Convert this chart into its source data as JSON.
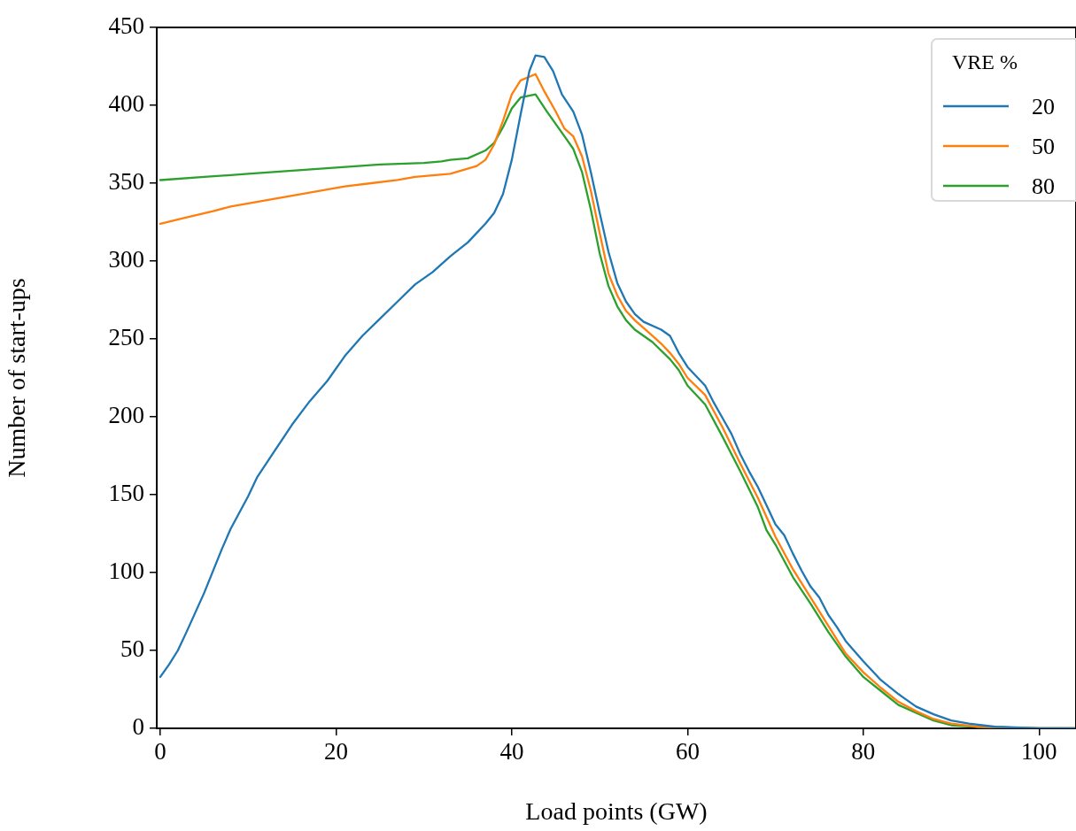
{
  "chart_data": {
    "type": "line",
    "xlabel": "Load points (GW)",
    "ylabel": "Number of start-ups",
    "legend_title": "VRE %",
    "legend": "top right",
    "grid": false,
    "marker": "none",
    "line_style": "solid",
    "xlim": [
      -0.4,
      104.2
    ],
    "xticks": [
      0,
      20,
      40,
      60,
      80,
      100
    ],
    "ylim": [
      0,
      450
    ],
    "yticks": [
      0,
      50,
      100,
      150,
      200,
      250,
      300,
      350,
      400,
      450
    ],
    "series": [
      {
        "name": "20",
        "color": "#1f77b4",
        "x": [
          0,
          1,
          2,
          3,
          5,
          7,
          8,
          10,
          11,
          13,
          15,
          17,
          19,
          21,
          23,
          25,
          27,
          29,
          31,
          33,
          35,
          37,
          38,
          39,
          40,
          41,
          42,
          42.7,
          43.7,
          44.7,
          45.7,
          47,
          48,
          49,
          50,
          51,
          52,
          53,
          54,
          55,
          57,
          58,
          59,
          60,
          61,
          62,
          63,
          64,
          65,
          66,
          67,
          68,
          69,
          70,
          71,
          72,
          73,
          74,
          75,
          76,
          77,
          78,
          80,
          82,
          84,
          86,
          88,
          90,
          92,
          95,
          100,
          104.2
        ],
        "values": [
          33,
          41,
          50,
          62,
          87,
          115,
          128,
          149,
          161,
          178,
          195,
          210,
          223,
          239,
          252,
          263,
          274,
          285,
          293,
          303,
          312,
          324,
          331,
          343,
          365,
          394,
          422,
          432,
          431,
          422,
          407,
          396,
          381,
          357,
          331,
          306,
          286,
          274,
          266,
          261,
          256,
          252,
          241,
          232,
          226,
          220,
          209,
          199,
          189,
          176,
          165,
          155,
          143,
          131,
          124,
          112,
          101,
          91,
          84,
          73,
          65,
          56,
          43,
          31,
          22,
          14,
          9,
          5,
          3,
          1,
          0,
          0
        ]
      },
      {
        "name": "50",
        "color": "#ff7f0e",
        "x": [
          0,
          3,
          6,
          8,
          10,
          13,
          15,
          17,
          19,
          21,
          24,
          27,
          29,
          33,
          36,
          37,
          38,
          39,
          40,
          41,
          42.7,
          43.7,
          45,
          46,
          47,
          48,
          49,
          50,
          51,
          52,
          53,
          54,
          55,
          56,
          57,
          58,
          59,
          60,
          62,
          64,
          66,
          68,
          70,
          72,
          74,
          76,
          78,
          80,
          82,
          84,
          86,
          88,
          90,
          93,
          100,
          104.2
        ],
        "values": [
          324,
          328,
          332,
          335,
          337,
          340,
          342,
          344,
          346,
          348,
          350,
          352,
          354,
          356,
          361,
          365,
          375,
          390,
          407,
          416,
          420,
          409,
          396,
          385,
          380,
          367,
          345,
          318,
          292,
          278,
          268,
          262,
          257,
          252,
          247,
          241,
          234,
          225,
          214,
          193,
          170,
          148,
          123,
          102,
          84,
          66,
          48,
          36,
          26,
          17,
          11,
          6,
          3,
          1,
          0,
          0
        ]
      },
      {
        "name": "80",
        "color": "#2ca02c",
        "x": [
          0,
          5,
          10,
          15,
          20,
          25,
          30,
          32,
          33,
          35,
          37,
          38,
          39,
          40,
          41,
          42.7,
          44,
          46,
          47,
          48,
          49,
          50,
          51,
          52,
          53,
          54,
          56,
          58,
          59,
          60,
          62,
          64,
          66,
          68,
          69,
          70,
          72,
          74,
          76,
          78,
          80,
          82,
          84,
          86,
          88,
          90,
          93,
          100,
          104.2
        ],
        "values": [
          352,
          354,
          356,
          358,
          360,
          362,
          363,
          364,
          365,
          366,
          371,
          376,
          386,
          398,
          405,
          407,
          396,
          380,
          372,
          357,
          333,
          305,
          284,
          271,
          262,
          256,
          248,
          237,
          230,
          220,
          208,
          187,
          165,
          142,
          127,
          118,
          97,
          80,
          62,
          46,
          33,
          24,
          15,
          10,
          5,
          2,
          1,
          0,
          0
        ]
      }
    ]
  }
}
